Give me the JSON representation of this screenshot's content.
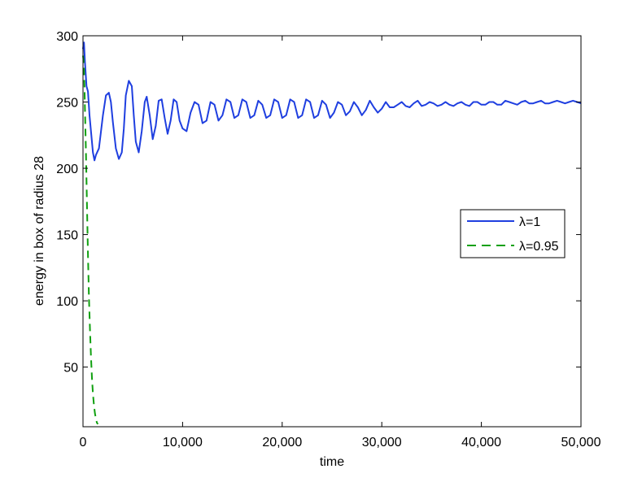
{
  "chart_data": {
    "type": "line",
    "title": "",
    "xlabel": "time",
    "ylabel": "energy in box of radius 28",
    "xlim": [
      0,
      50000
    ],
    "ylim": [
      5,
      300
    ],
    "xticks": [
      0,
      10000,
      20000,
      30000,
      40000,
      50000
    ],
    "xtick_labels": [
      "0",
      "10,000",
      "20,000",
      "30,000",
      "40,000",
      "50,000"
    ],
    "yticks": [
      50,
      100,
      150,
      200,
      250,
      300
    ],
    "ytick_labels": [
      "50",
      "100",
      "150",
      "200",
      "250",
      "300"
    ],
    "grid": false,
    "legend_position": "right",
    "series": [
      {
        "name": "λ=1",
        "color": "#1f3fe0",
        "style": "solid",
        "x": [
          0,
          100,
          200,
          350,
          500,
          650,
          800,
          1000,
          1150,
          1300,
          1600,
          2000,
          2300,
          2600,
          2800,
          3000,
          3300,
          3600,
          3900,
          4100,
          4300,
          4600,
          4900,
          5100,
          5300,
          5600,
          5900,
          6200,
          6400,
          6700,
          7000,
          7300,
          7600,
          7900,
          8200,
          8500,
          8800,
          9100,
          9400,
          9700,
          10000,
          10400,
          10800,
          11200,
          11600,
          12000,
          12400,
          12800,
          13200,
          13600,
          14000,
          14400,
          14800,
          15200,
          15600,
          16000,
          16400,
          16800,
          17200,
          17600,
          18000,
          18400,
          18800,
          19200,
          19600,
          20000,
          20400,
          20800,
          21200,
          21600,
          22000,
          22400,
          22800,
          23200,
          23600,
          24000,
          24400,
          24800,
          25200,
          25600,
          26000,
          26400,
          26800,
          27200,
          27600,
          28000,
          28400,
          28800,
          29200,
          29600,
          30000,
          30400,
          30800,
          31200,
          31600,
          32000,
          32400,
          32800,
          33200,
          33600,
          34000,
          34400,
          34800,
          35200,
          35600,
          36000,
          36400,
          36800,
          37200,
          37600,
          38000,
          38400,
          38800,
          39200,
          39600,
          40000,
          40400,
          40800,
          41200,
          41600,
          42000,
          42400,
          42800,
          43200,
          43600,
          44000,
          44400,
          44800,
          45200,
          45600,
          46000,
          46400,
          46800,
          47200,
          47600,
          48000,
          48400,
          48800,
          49200,
          49600,
          50000
        ],
        "values": [
          290,
          295,
          280,
          262,
          258,
          240,
          228,
          212,
          206,
          210,
          215,
          240,
          255,
          257,
          250,
          235,
          215,
          207,
          212,
          230,
          255,
          266,
          262,
          240,
          220,
          212,
          228,
          250,
          254,
          240,
          222,
          232,
          251,
          252,
          238,
          226,
          236,
          252,
          250,
          236,
          230,
          228,
          242,
          250,
          248,
          234,
          236,
          250,
          248,
          236,
          240,
          252,
          250,
          238,
          240,
          252,
          250,
          238,
          240,
          251,
          248,
          238,
          240,
          252,
          250,
          238,
          240,
          252,
          250,
          238,
          240,
          252,
          250,
          238,
          240,
          251,
          248,
          238,
          242,
          250,
          248,
          240,
          243,
          250,
          246,
          240,
          244,
          251,
          246,
          242,
          245,
          250,
          246,
          246,
          248,
          250,
          247,
          246,
          249,
          251,
          247,
          248,
          250,
          249,
          247,
          248,
          250,
          248,
          247,
          249,
          250,
          248,
          247,
          250,
          250,
          248,
          248,
          250,
          250,
          248,
          248,
          251,
          250,
          249,
          248,
          250,
          251,
          249,
          249,
          250,
          251,
          249,
          249,
          250,
          251,
          250,
          249,
          250,
          251,
          250,
          249
        ]
      },
      {
        "name": "λ=0.95",
        "color": "#10a010",
        "style": "dashed",
        "x": [
          0,
          50,
          100,
          150,
          200,
          300,
          400,
          500,
          600,
          700,
          800,
          900,
          1000,
          1100,
          1200,
          1300,
          1400,
          1500
        ],
        "values": [
          285,
          282,
          275,
          262,
          245,
          210,
          172,
          135,
          103,
          78,
          58,
          42,
          30,
          21,
          15,
          11,
          8,
          7
        ]
      }
    ]
  }
}
